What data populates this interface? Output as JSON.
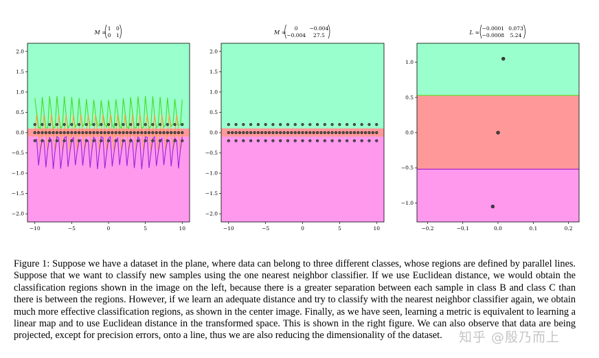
{
  "panels": [
    {
      "title": "M = (1 0 / 0 1)",
      "matrix_prefix": "M =",
      "matrix": [
        [
          "1",
          "0"
        ],
        [
          "0",
          "1"
        ]
      ],
      "xticks": [
        "−10",
        "−5",
        "0",
        "5",
        "10"
      ],
      "yticks": [
        "2.0",
        "1.5",
        "1.0",
        "0.5",
        "0.0",
        "−0.5",
        "−1.0",
        "−1.5",
        "−2.0"
      ]
    },
    {
      "title": "M ≈ (0 −0.004 / −0.004 27.5)",
      "matrix_prefix": "M ≈",
      "matrix": [
        [
          "0",
          "−0.004"
        ],
        [
          "−0.004",
          "27.5"
        ]
      ],
      "xticks": [
        "−10",
        "−5",
        "0",
        "5",
        "10"
      ],
      "yticks": [
        "2.0",
        "1.5",
        "1.0",
        "0.5",
        "0.0",
        "−0.5",
        "−1.0",
        "−1.5",
        "−2.0"
      ]
    },
    {
      "title": "L ≈ (−0.0001 0.073 / −0.0008 5.24)",
      "matrix_prefix": "L ≈",
      "matrix": [
        [
          "−0.0001",
          "0.073"
        ],
        [
          "−0.0008",
          "5.24"
        ]
      ],
      "xticks": [
        "−0.2",
        "−0.1",
        "0.0",
        "0.1",
        "0.2"
      ],
      "yticks": [
        "1.0",
        "0.5",
        "0.0",
        "−0.5",
        "−1.0"
      ]
    }
  ],
  "chart_data": [
    {
      "type": "scatter",
      "title": "M = (1 0 / 0 1)",
      "xlim": [
        -11,
        11
      ],
      "ylim": [
        -2.2,
        2.2
      ],
      "regions": [
        {
          "class": "A",
          "y_from": 0.1,
          "y_to": 2.2,
          "color": "#99ffcc"
        },
        {
          "class": "B",
          "y_from": -0.1,
          "y_to": 0.1,
          "color": "#ff9999"
        },
        {
          "class": "C",
          "y_from": -2.2,
          "y_to": -0.1,
          "color": "#ff99ee"
        }
      ],
      "boundary": "jagged",
      "series": [
        {
          "y": 0.2,
          "x_from": -10,
          "x_to": 10,
          "count": 21
        },
        {
          "y": 0.0,
          "x_from": -10,
          "x_to": 10,
          "count": 41
        },
        {
          "y": -0.2,
          "x_from": -10,
          "x_to": 10,
          "count": 21
        }
      ]
    },
    {
      "type": "scatter",
      "title": "M ≈ (0 −0.004 / −0.004 27.5)",
      "xlim": [
        -11,
        11
      ],
      "ylim": [
        -2.2,
        2.2
      ],
      "regions": [
        {
          "class": "A",
          "y_from": 0.1,
          "y_to": 2.2,
          "color": "#99ffcc"
        },
        {
          "class": "B",
          "y_from": -0.1,
          "y_to": 0.1,
          "color": "#ff9999"
        },
        {
          "class": "C",
          "y_from": -2.2,
          "y_to": -0.1,
          "color": "#ff99ee"
        }
      ],
      "boundary": "straight",
      "series": [
        {
          "y": 0.2,
          "x_from": -10,
          "x_to": 10,
          "count": 21
        },
        {
          "y": 0.0,
          "x_from": -10,
          "x_to": 10,
          "count": 41
        },
        {
          "y": -0.2,
          "x_from": -10,
          "x_to": 10,
          "count": 21
        }
      ]
    },
    {
      "type": "scatter",
      "title": "L ≈ (−0.0001 0.073 / −0.0008 5.24)",
      "xlim": [
        -0.23,
        0.23
      ],
      "ylim": [
        -1.27,
        1.27
      ],
      "regions": [
        {
          "class": "A",
          "y_from": 0.53,
          "y_to": 1.27,
          "color": "#99ffcc"
        },
        {
          "class": "B",
          "y_from": -0.52,
          "y_to": 0.53,
          "color": "#ff9999"
        },
        {
          "class": "C",
          "y_from": -1.27,
          "y_to": -0.52,
          "color": "#ff99ee"
        }
      ],
      "boundary": "straight",
      "points": [
        {
          "x": 0.015,
          "y": 1.05
        },
        {
          "x": 0.0,
          "y": 0.0
        },
        {
          "x": -0.015,
          "y": -1.05
        }
      ]
    }
  ],
  "caption": "Figure 1: Suppose we have a dataset in the plane, where data can belong to three different classes, whose regions are defined by parallel lines. Suppose that we want to classify new samples using the one nearest neighbor classifier. If we use Euclidean distance, we would obtain the classification regions shown in the image on the left, because there is a greater separation between each sample in class B and class C than there is between the regions. However, if we learn an adequate distance and try to classify with the nearest neighbor classifier again, we obtain much more effective classification regions, as shown in the center image. Finally, as we have seen, learning a metric is equivalent to learning a linear map and to use Euclidean distance in the transformed space. This is shown in the right figure. We can also observe that data are being projected, except for precision errors, onto a line, thus we are also reducing the dimensionality of the dataset.",
  "watermark": "知乎 @殷乃而上",
  "colors": {
    "class_a": "#99ffcc",
    "class_b": "#ff9999",
    "class_c": "#ff99ee",
    "point": "#222222"
  }
}
